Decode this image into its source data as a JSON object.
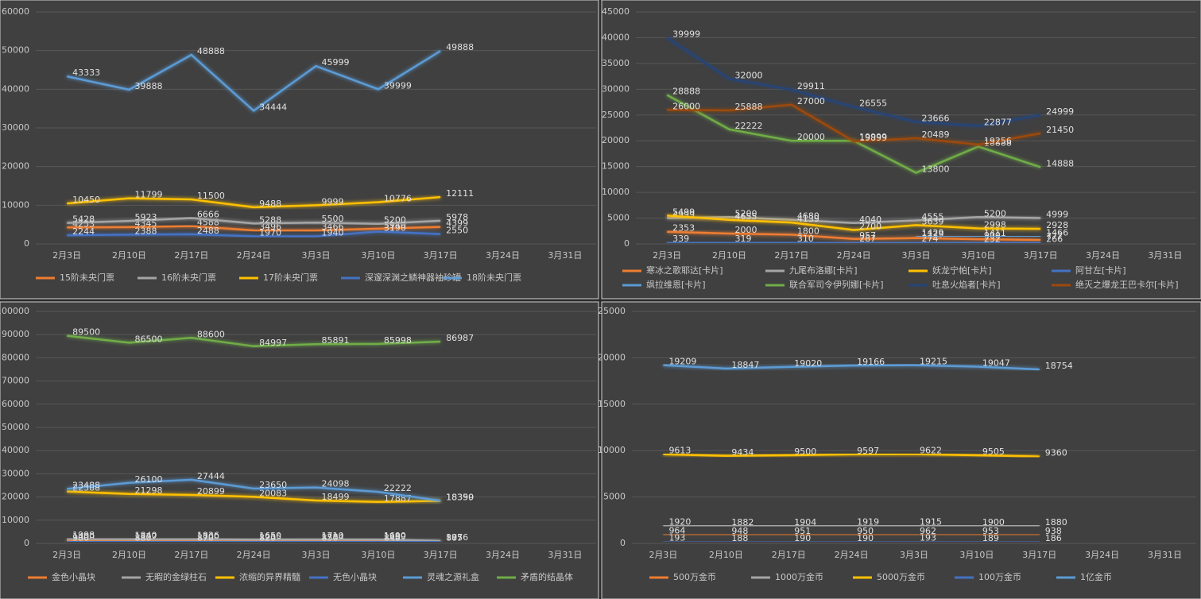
{
  "chart_data": [
    {
      "type": "line",
      "categories": [
        "2月3日",
        "2月10日",
        "2月17日",
        "2月24日",
        "3月3日",
        "3月10日",
        "3月17日",
        "3月24日",
        "3月31日"
      ],
      "ylim": [
        0,
        60000
      ],
      "yticks": [
        0,
        10000,
        20000,
        30000,
        40000,
        50000,
        60000
      ],
      "grid": true,
      "series": [
        {
          "name": "15阶未央门票",
          "color": "#ed7d31",
          "values": [
            4253,
            4345,
            4588,
            3496,
            3466,
            3940,
            4399,
            null,
            null
          ]
        },
        {
          "name": "16阶未央门票",
          "color": "#a5a5a5",
          "values": [
            5428,
            5923,
            6666,
            5288,
            5500,
            5200,
            5978,
            null,
            null
          ]
        },
        {
          "name": "17阶未央门票",
          "color": "#ffc000",
          "values": [
            10450,
            11799,
            11500,
            9488,
            9999,
            10776,
            12111,
            null,
            null
          ]
        },
        {
          "name": "深邃深渊之鳞神器袖珍罐",
          "color": "#4472c4",
          "values": [
            2244,
            2388,
            2488,
            1970,
            1940,
            3190,
            2550,
            null,
            null
          ]
        },
        {
          "name": "18阶未央门票",
          "color": "#5b9bd5",
          "values": [
            43333,
            39888,
            48888,
            34444,
            45999,
            39999,
            49888,
            null,
            null
          ]
        }
      ]
    },
    {
      "type": "line",
      "categories": [
        "2月3日",
        "2月10日",
        "2月17日",
        "2月24日",
        "3月3日",
        "3月10日",
        "3月17日",
        "3月24日",
        "3月31日"
      ],
      "ylim": [
        0,
        45000
      ],
      "yticks": [
        0,
        5000,
        10000,
        15000,
        20000,
        25000,
        30000,
        35000,
        40000,
        45000
      ],
      "grid": true,
      "series": [
        {
          "name": "寒冰之歌耶达[卡片]",
          "color": "#ed7d31",
          "values": [
            2353,
            2000,
            1800,
            957,
            1129,
            900,
            777,
            null,
            null
          ]
        },
        {
          "name": "九尾布洛娜[卡片]",
          "color": "#a5a5a5",
          "values": [
            4999,
            5200,
            4680,
            4040,
            4555,
            5200,
            4999,
            null,
            null
          ]
        },
        {
          "name": "妖龙宁帕[卡片]",
          "color": "#ffc000",
          "values": [
            5499,
            4655,
            4139,
            2700,
            3639,
            2998,
            2928,
            null,
            null
          ]
        },
        {
          "name": "阿甘左[卡片]",
          "color": "#4472c4",
          "values": [
            339,
            319,
            310,
            287,
            274,
            232,
            266,
            null,
            null
          ]
        },
        {
          "name": "飒拉维恩[卡片]",
          "color": "#5b9bd5",
          "values": [
            null,
            null,
            null,
            null,
            1429,
            1411,
            1466,
            null,
            null
          ]
        },
        {
          "name": "联合军司令伊列娜[卡片]",
          "color": "#70ad47",
          "values": [
            28888,
            22222,
            20000,
            19999,
            13800,
            18888,
            14888,
            null,
            null
          ]
        },
        {
          "name": "吐息火焰者[卡片]",
          "color": "#264478",
          "values": [
            39999,
            32000,
            29911,
            26555,
            23666,
            22877,
            24999,
            null,
            null
          ]
        },
        {
          "name": "绝灭之爆龙王巴卡尔[卡片]",
          "color": "#9e480e",
          "values": [
            26000,
            25888,
            27000,
            19899,
            20489,
            19256,
            21450,
            null,
            null
          ]
        }
      ]
    },
    {
      "type": "line",
      "categories": [
        "2月3日",
        "2月10日",
        "2月17日",
        "2月24日",
        "3月3日",
        "3月10日",
        "3月17日",
        "3月24日",
        "3月31日"
      ],
      "ylim": [
        0,
        100000
      ],
      "yticks": [
        0,
        10000,
        20000,
        30000,
        40000,
        50000,
        60000,
        70000,
        80000,
        90000,
        100000
      ],
      "grid": true,
      "series": [
        {
          "name": "金色小晶块",
          "color": "#ed7d31",
          "values": [
            1400,
            1322,
            1300,
            1235,
            1284,
            1299,
            875,
            null,
            null
          ]
        },
        {
          "name": "无暇的金绿柱石",
          "color": "#a5a5a5",
          "values": [
            1998,
            1840,
            1836,
            1650,
            1710,
            1690,
            1076,
            null,
            null
          ]
        },
        {
          "name": "浓缩的异界精髓",
          "color": "#ffc000",
          "values": [
            22388,
            21298,
            20899,
            20083,
            18499,
            17887,
            18350,
            null,
            null
          ]
        },
        {
          "name": "无色小晶块",
          "color": "#4472c4",
          "values": [
            900,
            880,
            870,
            820,
            850,
            840,
            887,
            null,
            null
          ]
        },
        {
          "name": "灵魂之源礼盒",
          "color": "#5b9bd5",
          "values": [
            23488,
            26100,
            27444,
            23650,
            24098,
            22222,
            18399,
            null,
            null
          ]
        },
        {
          "name": "矛盾的结晶体",
          "color": "#70ad47",
          "values": [
            89500,
            86500,
            88600,
            84997,
            85891,
            85998,
            86987,
            null,
            null
          ]
        }
      ]
    },
    {
      "type": "line",
      "categories": [
        "2月3日",
        "2月10日",
        "2月17日",
        "2月24日",
        "3月3日",
        "3月10日",
        "3月17日",
        "3月24日",
        "3月31日"
      ],
      "ylim": [
        0,
        25000
      ],
      "yticks": [
        0,
        5000,
        10000,
        15000,
        20000,
        25000
      ],
      "grid": true,
      "series": [
        {
          "name": "500万金币",
          "color": "#ed7d31",
          "values": [
            964,
            948,
            951,
            950,
            962,
            953,
            938,
            null,
            null
          ]
        },
        {
          "name": "1000万金币",
          "color": "#a5a5a5",
          "values": [
            1920,
            1882,
            1904,
            1919,
            1915,
            1900,
            1880,
            null,
            null
          ]
        },
        {
          "name": "5000万金币",
          "color": "#ffc000",
          "values": [
            9613,
            9434,
            9500,
            9597,
            9622,
            9505,
            9360,
            null,
            null
          ]
        },
        {
          "name": "100万金币",
          "color": "#4472c4",
          "values": [
            193,
            188,
            190,
            190,
            193,
            189,
            186,
            null,
            null
          ]
        },
        {
          "name": "1亿金币",
          "color": "#5b9bd5",
          "values": [
            19209,
            18847,
            19020,
            19166,
            19215,
            19047,
            18754,
            null,
            null
          ]
        }
      ]
    }
  ]
}
